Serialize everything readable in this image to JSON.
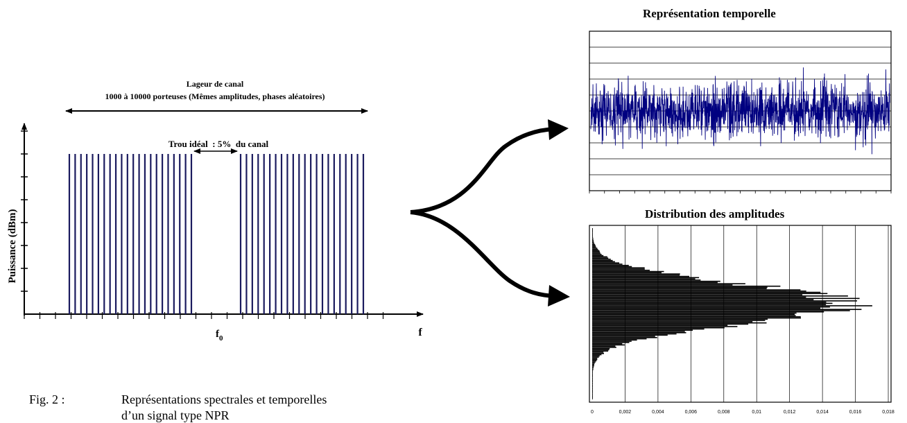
{
  "spectrum": {
    "channel_width_title": "Lageur de canal",
    "carriers_subtitle": "1000 à 10000 porteuses (Mêmes amplitudes, phases aléatoires)",
    "notch_label": "Trou idéal  : 5%  du canal",
    "y_axis_label": "Puissance (dBm)",
    "x_axis_label": "f",
    "center_freq_label": "f",
    "center_freq_sub": "0",
    "left_carriers": 22,
    "right_carriers": 22,
    "carrier_color": "#1a1a5e"
  },
  "time_plot": {
    "title": "Représentation temporelle",
    "signal_color": "#000080"
  },
  "hist_plot": {
    "title": "Distribution des amplitudes",
    "x_ticks": [
      "0",
      "0,002",
      "0,004",
      "0,006",
      "0,008",
      "0,01",
      "0,012",
      "0,014",
      "0,016",
      "0,018"
    ],
    "bar_color": "#000000"
  },
  "caption": {
    "fig_label": "Fig. 2 :",
    "text_line1": "Représentations spectrales et temporelles",
    "text_line2": "d’un signal type NPR"
  }
}
